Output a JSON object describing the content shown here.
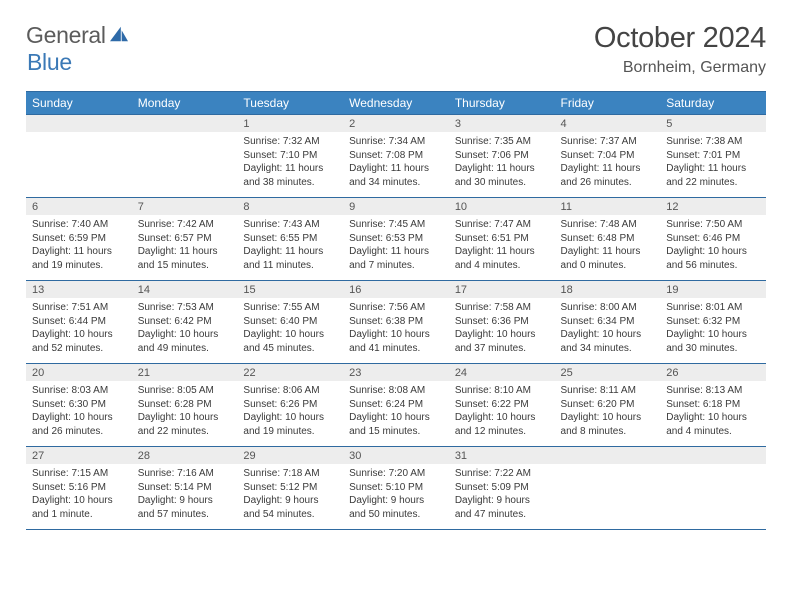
{
  "logo": {
    "word1": "General",
    "word2": "Blue",
    "icon_color": "#2e6aa8"
  },
  "title": "October 2024",
  "location": "Bornheim, Germany",
  "colors": {
    "header_bg": "#3b83c0",
    "header_border": "#2f6aa0",
    "daynum_bg": "#ededed",
    "text": "#3a3a3a"
  },
  "dow": [
    "Sunday",
    "Monday",
    "Tuesday",
    "Wednesday",
    "Thursday",
    "Friday",
    "Saturday"
  ],
  "weeks": [
    [
      null,
      null,
      {
        "n": "1",
        "sr": "7:32 AM",
        "ss": "7:10 PM",
        "dl": "11 hours and 38 minutes."
      },
      {
        "n": "2",
        "sr": "7:34 AM",
        "ss": "7:08 PM",
        "dl": "11 hours and 34 minutes."
      },
      {
        "n": "3",
        "sr": "7:35 AM",
        "ss": "7:06 PM",
        "dl": "11 hours and 30 minutes."
      },
      {
        "n": "4",
        "sr": "7:37 AM",
        "ss": "7:04 PM",
        "dl": "11 hours and 26 minutes."
      },
      {
        "n": "5",
        "sr": "7:38 AM",
        "ss": "7:01 PM",
        "dl": "11 hours and 22 minutes."
      }
    ],
    [
      {
        "n": "6",
        "sr": "7:40 AM",
        "ss": "6:59 PM",
        "dl": "11 hours and 19 minutes."
      },
      {
        "n": "7",
        "sr": "7:42 AM",
        "ss": "6:57 PM",
        "dl": "11 hours and 15 minutes."
      },
      {
        "n": "8",
        "sr": "7:43 AM",
        "ss": "6:55 PM",
        "dl": "11 hours and 11 minutes."
      },
      {
        "n": "9",
        "sr": "7:45 AM",
        "ss": "6:53 PM",
        "dl": "11 hours and 7 minutes."
      },
      {
        "n": "10",
        "sr": "7:47 AM",
        "ss": "6:51 PM",
        "dl": "11 hours and 4 minutes."
      },
      {
        "n": "11",
        "sr": "7:48 AM",
        "ss": "6:48 PM",
        "dl": "11 hours and 0 minutes."
      },
      {
        "n": "12",
        "sr": "7:50 AM",
        "ss": "6:46 PM",
        "dl": "10 hours and 56 minutes."
      }
    ],
    [
      {
        "n": "13",
        "sr": "7:51 AM",
        "ss": "6:44 PM",
        "dl": "10 hours and 52 minutes."
      },
      {
        "n": "14",
        "sr": "7:53 AM",
        "ss": "6:42 PM",
        "dl": "10 hours and 49 minutes."
      },
      {
        "n": "15",
        "sr": "7:55 AM",
        "ss": "6:40 PM",
        "dl": "10 hours and 45 minutes."
      },
      {
        "n": "16",
        "sr": "7:56 AM",
        "ss": "6:38 PM",
        "dl": "10 hours and 41 minutes."
      },
      {
        "n": "17",
        "sr": "7:58 AM",
        "ss": "6:36 PM",
        "dl": "10 hours and 37 minutes."
      },
      {
        "n": "18",
        "sr": "8:00 AM",
        "ss": "6:34 PM",
        "dl": "10 hours and 34 minutes."
      },
      {
        "n": "19",
        "sr": "8:01 AM",
        "ss": "6:32 PM",
        "dl": "10 hours and 30 minutes."
      }
    ],
    [
      {
        "n": "20",
        "sr": "8:03 AM",
        "ss": "6:30 PM",
        "dl": "10 hours and 26 minutes."
      },
      {
        "n": "21",
        "sr": "8:05 AM",
        "ss": "6:28 PM",
        "dl": "10 hours and 22 minutes."
      },
      {
        "n": "22",
        "sr": "8:06 AM",
        "ss": "6:26 PM",
        "dl": "10 hours and 19 minutes."
      },
      {
        "n": "23",
        "sr": "8:08 AM",
        "ss": "6:24 PM",
        "dl": "10 hours and 15 minutes."
      },
      {
        "n": "24",
        "sr": "8:10 AM",
        "ss": "6:22 PM",
        "dl": "10 hours and 12 minutes."
      },
      {
        "n": "25",
        "sr": "8:11 AM",
        "ss": "6:20 PM",
        "dl": "10 hours and 8 minutes."
      },
      {
        "n": "26",
        "sr": "8:13 AM",
        "ss": "6:18 PM",
        "dl": "10 hours and 4 minutes."
      }
    ],
    [
      {
        "n": "27",
        "sr": "7:15 AM",
        "ss": "5:16 PM",
        "dl": "10 hours and 1 minute."
      },
      {
        "n": "28",
        "sr": "7:16 AM",
        "ss": "5:14 PM",
        "dl": "9 hours and 57 minutes."
      },
      {
        "n": "29",
        "sr": "7:18 AM",
        "ss": "5:12 PM",
        "dl": "9 hours and 54 minutes."
      },
      {
        "n": "30",
        "sr": "7:20 AM",
        "ss": "5:10 PM",
        "dl": "9 hours and 50 minutes."
      },
      {
        "n": "31",
        "sr": "7:22 AM",
        "ss": "5:09 PM",
        "dl": "9 hours and 47 minutes."
      },
      null,
      null
    ]
  ],
  "labels": {
    "sunrise": "Sunrise: ",
    "sunset": "Sunset: ",
    "daylight": "Daylight: "
  }
}
